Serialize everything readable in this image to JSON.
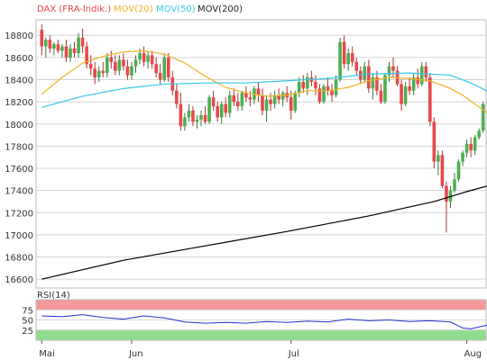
{
  "legend": [
    {
      "label": "DAX (FRA-Indik.)",
      "color": "#e8474c"
    },
    {
      "label": "MOV(20)",
      "color": "#f0b323"
    },
    {
      "label": "MOV(50)",
      "color": "#36c8e8"
    },
    {
      "label": "MOV(200)",
      "color": "#000000"
    }
  ],
  "colors": {
    "up": "#4caf50",
    "down": "#e8474c",
    "grid": "#d4d4d4",
    "axis": "#555555",
    "rsi_line": "#2233cc",
    "rsi_overbought": "#f29a9a",
    "rsi_oversold": "#8fdc8f"
  },
  "chart_data": [
    {
      "type": "candlestick",
      "title": "",
      "y_ticks": [
        16600,
        16800,
        17000,
        17200,
        17400,
        17600,
        17800,
        18000,
        18200,
        18400,
        18600,
        18800
      ],
      "ylim": [
        16520,
        18940
      ],
      "x_ticks": [
        {
          "label": "Mai",
          "index": 0
        },
        {
          "label": "Jun",
          "index": 22
        },
        {
          "label": "Jul",
          "index": 61
        },
        {
          "label": "Aug",
          "index": 104
        }
      ],
      "grid": true,
      "legend_position": "top-left",
      "candles": [
        [
          18850,
          18900,
          18620,
          18700
        ],
        [
          18700,
          18780,
          18600,
          18760
        ],
        [
          18760,
          18800,
          18640,
          18680
        ],
        [
          18680,
          18740,
          18620,
          18720
        ],
        [
          18720,
          18760,
          18640,
          18660
        ],
        [
          18660,
          18720,
          18600,
          18700
        ],
        [
          18700,
          18760,
          18560,
          18600
        ],
        [
          18600,
          18720,
          18560,
          18680
        ],
        [
          18680,
          18740,
          18600,
          18640
        ],
        [
          18640,
          18820,
          18600,
          18780
        ],
        [
          18780,
          18860,
          18640,
          18700
        ],
        [
          18700,
          18740,
          18500,
          18540
        ],
        [
          18540,
          18620,
          18440,
          18500
        ],
        [
          18500,
          18560,
          18360,
          18420
        ],
        [
          18420,
          18520,
          18380,
          18480
        ],
        [
          18480,
          18560,
          18420,
          18460
        ],
        [
          18460,
          18640,
          18420,
          18600
        ],
        [
          18600,
          18660,
          18500,
          18560
        ],
        [
          18560,
          18620,
          18440,
          18480
        ],
        [
          18480,
          18620,
          18440,
          18580
        ],
        [
          18580,
          18640,
          18480,
          18520
        ],
        [
          18520,
          18580,
          18400,
          18440
        ],
        [
          18440,
          18560,
          18400,
          18520
        ],
        [
          18520,
          18620,
          18460,
          18580
        ],
        [
          18580,
          18680,
          18540,
          18640
        ],
        [
          18640,
          18700,
          18520,
          18560
        ],
        [
          18560,
          18660,
          18500,
          18620
        ],
        [
          18620,
          18660,
          18500,
          18540
        ],
        [
          18540,
          18600,
          18420,
          18460
        ],
        [
          18460,
          18540,
          18360,
          18400
        ],
        [
          18400,
          18640,
          18380,
          18600
        ],
        [
          18600,
          18640,
          18380,
          18420
        ],
        [
          18420,
          18480,
          18260,
          18300
        ],
        [
          18300,
          18360,
          18140,
          18180
        ],
        [
          18180,
          18280,
          17940,
          17980
        ],
        [
          17980,
          18100,
          17940,
          18060
        ],
        [
          18060,
          18180,
          18020,
          18120
        ],
        [
          18120,
          18160,
          17980,
          18020
        ],
        [
          18020,
          18080,
          17960,
          18040
        ],
        [
          18040,
          18120,
          17980,
          18080
        ],
        [
          18080,
          18160,
          18000,
          18020
        ],
        [
          18020,
          18260,
          18000,
          18240
        ],
        [
          18240,
          18300,
          18120,
          18160
        ],
        [
          18160,
          18200,
          18020,
          18060
        ],
        [
          18060,
          18200,
          18000,
          18180
        ],
        [
          18180,
          18240,
          18060,
          18100
        ],
        [
          18100,
          18300,
          18060,
          18260
        ],
        [
          18260,
          18320,
          18160,
          18200
        ],
        [
          18200,
          18280,
          18120,
          18160
        ],
        [
          18160,
          18300,
          18120,
          18280
        ],
        [
          18280,
          18340,
          18200,
          18240
        ],
        [
          18240,
          18300,
          18160,
          18220
        ],
        [
          18220,
          18340,
          18180,
          18320
        ],
        [
          18320,
          18380,
          18200,
          18260
        ],
        [
          18260,
          18320,
          18080,
          18120
        ],
        [
          18120,
          18260,
          18020,
          18220
        ],
        [
          18220,
          18280,
          18120,
          18180
        ],
        [
          18180,
          18300,
          18140,
          18260
        ],
        [
          18260,
          18320,
          18180,
          18220
        ],
        [
          18220,
          18300,
          18160,
          18280
        ],
        [
          18280,
          18340,
          18200,
          18240
        ],
        [
          18240,
          18300,
          18040,
          18120
        ],
        [
          18120,
          18300,
          18100,
          18280
        ],
        [
          18280,
          18420,
          18240,
          18380
        ],
        [
          18380,
          18440,
          18280,
          18320
        ],
        [
          18320,
          18460,
          18260,
          18420
        ],
        [
          18420,
          18480,
          18340,
          18380
        ],
        [
          18380,
          18440,
          18260,
          18320
        ],
        [
          18320,
          18360,
          18180,
          18200
        ],
        [
          18200,
          18360,
          18180,
          18340
        ],
        [
          18340,
          18420,
          18260,
          18300
        ],
        [
          18300,
          18360,
          18200,
          18260
        ],
        [
          18260,
          18440,
          18240,
          18400
        ],
        [
          18400,
          18780,
          18380,
          18740
        ],
        [
          18740,
          18800,
          18500,
          18540
        ],
        [
          18540,
          18680,
          18480,
          18640
        ],
        [
          18640,
          18700,
          18520,
          18560
        ],
        [
          18560,
          18600,
          18440,
          18480
        ],
        [
          18480,
          18520,
          18360,
          18400
        ],
        [
          18400,
          18560,
          18380,
          18520
        ],
        [
          18520,
          18580,
          18280,
          18320
        ],
        [
          18320,
          18460,
          18220,
          18420
        ],
        [
          18420,
          18480,
          18260,
          18300
        ],
        [
          18300,
          18360,
          18180,
          18200
        ],
        [
          18200,
          18460,
          18180,
          18440
        ],
        [
          18440,
          18560,
          18380,
          18520
        ],
        [
          18520,
          18600,
          18420,
          18480
        ],
        [
          18480,
          18520,
          18340,
          18360
        ],
        [
          18360,
          18400,
          18120,
          18180
        ],
        [
          18180,
          18380,
          18160,
          18340
        ],
        [
          18340,
          18420,
          18260,
          18300
        ],
        [
          18300,
          18460,
          18260,
          18420
        ],
        [
          18420,
          18500,
          18320,
          18360
        ],
        [
          18360,
          18560,
          18340,
          18520
        ],
        [
          18520,
          18560,
          18380,
          18420
        ],
        [
          18420,
          18460,
          17980,
          18020
        ],
        [
          18020,
          18060,
          17600,
          17660
        ],
        [
          17660,
          17760,
          17540,
          17720
        ],
        [
          17720,
          17760,
          17420,
          17440
        ],
        [
          17440,
          17480,
          17020,
          17300
        ],
        [
          17300,
          17440,
          17240,
          17400
        ],
        [
          17400,
          17560,
          17380,
          17500
        ],
        [
          17500,
          17680,
          17480,
          17660
        ],
        [
          17660,
          17760,
          17620,
          17740
        ],
        [
          17740,
          17860,
          17700,
          17820
        ],
        [
          17820,
          17880,
          17700,
          17760
        ],
        [
          17760,
          17900,
          17720,
          17880
        ],
        [
          17880,
          17960,
          17860,
          17940
        ],
        [
          17940,
          18200,
          17920,
          18180
        ]
      ],
      "series": [
        {
          "name": "MOV(20)",
          "type": "line",
          "values_at": [
            [
              0,
              18270
            ],
            [
              5,
              18420
            ],
            [
              10,
              18550
            ],
            [
              15,
              18610
            ],
            [
              20,
              18650
            ],
            [
              25,
              18660
            ],
            [
              30,
              18630
            ],
            [
              35,
              18550
            ],
            [
              40,
              18430
            ],
            [
              45,
              18330
            ],
            [
              50,
              18280
            ],
            [
              55,
              18250
            ],
            [
              60,
              18260
            ],
            [
              65,
              18300
            ],
            [
              70,
              18300
            ],
            [
              75,
              18330
            ],
            [
              80,
              18390
            ],
            [
              85,
              18420
            ],
            [
              90,
              18410
            ],
            [
              95,
              18390
            ],
            [
              100,
              18320
            ],
            [
              103,
              18260
            ],
            [
              106,
              18180
            ],
            [
              109,
              18100
            ],
            [
              112,
              18060
            ],
            [
              114,
              18040
            ]
          ]
        },
        {
          "name": "MOV(50)",
          "type": "line",
          "values_at": [
            [
              0,
              18150
            ],
            [
              10,
              18250
            ],
            [
              20,
              18320
            ],
            [
              30,
              18360
            ],
            [
              40,
              18370
            ],
            [
              50,
              18370
            ],
            [
              60,
              18390
            ],
            [
              70,
              18410
            ],
            [
              80,
              18450
            ],
            [
              90,
              18460
            ],
            [
              100,
              18440
            ],
            [
              105,
              18370
            ],
            [
              110,
              18280
            ],
            [
              114,
              18220
            ]
          ]
        },
        {
          "name": "MOV(200)",
          "type": "line",
          "values_at": [
            [
              0,
              16600
            ],
            [
              20,
              16770
            ],
            [
              40,
              16900
            ],
            [
              60,
              17030
            ],
            [
              80,
              17170
            ],
            [
              96,
              17300
            ],
            [
              104,
              17390
            ],
            [
              110,
              17450
            ],
            [
              114,
              17530
            ]
          ]
        }
      ]
    },
    {
      "type": "line",
      "title": "RSI(14)",
      "y_ticks": [
        25,
        50,
        75
      ],
      "ylim": [
        0,
        100
      ],
      "zones": {
        "overbought": [
          75,
          100
        ],
        "oversold": [
          0,
          25
        ]
      },
      "series": [
        {
          "name": "RSI(14)",
          "values_at": [
            [
              0,
              60
            ],
            [
              5,
              58
            ],
            [
              10,
              63
            ],
            [
              15,
              56
            ],
            [
              20,
              52
            ],
            [
              25,
              60
            ],
            [
              30,
              55
            ],
            [
              35,
              45
            ],
            [
              40,
              42
            ],
            [
              45,
              44
            ],
            [
              50,
              42
            ],
            [
              55,
              46
            ],
            [
              60,
              44
            ],
            [
              65,
              47
            ],
            [
              70,
              45
            ],
            [
              75,
              52
            ],
            [
              80,
              48
            ],
            [
              85,
              50
            ],
            [
              90,
              46
            ],
            [
              95,
              48
            ],
            [
              100,
              45
            ],
            [
              103,
              30
            ],
            [
              105,
              28
            ],
            [
              108,
              35
            ],
            [
              111,
              42
            ],
            [
              114,
              58
            ]
          ]
        }
      ]
    }
  ]
}
